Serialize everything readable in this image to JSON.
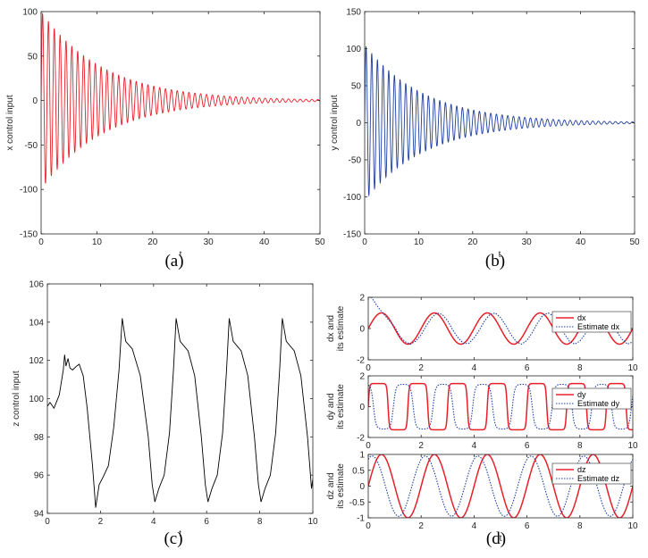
{
  "chart_data": [
    {
      "id": "a",
      "type": "line",
      "caption": "(a)",
      "xlabel": "t",
      "ylabel": "x control input",
      "xlim": [
        0,
        50
      ],
      "ylim": [
        -150,
        100
      ],
      "xticks": [
        0,
        10,
        20,
        30,
        40,
        50
      ],
      "yticks": [
        -150,
        -100,
        -50,
        0,
        50,
        100
      ],
      "grid": false,
      "legend": null,
      "series": [
        {
          "color": "#e8202a",
          "signal": {
            "kind": "damped_sine",
            "amplitude": 100,
            "decay_rate": 0.09,
            "period": 1.05,
            "phase": 0,
            "samples": 3000
          },
          "envelope_peaks": [
            {
              "t": 0.3,
              "y": 100
            },
            {
              "t": 10,
              "y": 40
            },
            {
              "t": 20,
              "y": 16
            },
            {
              "t": 30,
              "y": 6
            },
            {
              "t": 50,
              "y": 2
            }
          ]
        }
      ]
    },
    {
      "id": "b",
      "type": "line",
      "caption": "(b)",
      "xlabel": "t",
      "ylabel": "y control input",
      "xlim": [
        0,
        50
      ],
      "ylim": [
        -150,
        150
      ],
      "xticks": [
        0,
        10,
        20,
        30,
        40,
        50
      ],
      "yticks": [
        -150,
        -100,
        -50,
        0,
        50,
        100,
        150
      ],
      "grid": false,
      "legend": null,
      "series": [
        {
          "color": "#1f3f9e",
          "signal": {
            "kind": "damped_sine",
            "amplitude": 105,
            "decay_rate": 0.09,
            "period": 1.05,
            "phase": 0,
            "samples": 3000
          },
          "envelope_peaks": [
            {
              "t": 0.5,
              "y": 103
            },
            {
              "t": 10,
              "y": 42
            },
            {
              "t": 20,
              "y": 16
            },
            {
              "t": 30,
              "y": 6
            },
            {
              "t": 50,
              "y": 2
            }
          ]
        }
      ]
    },
    {
      "id": "c",
      "type": "line",
      "caption": "(c)",
      "xlabel": "t",
      "ylabel": "z control input",
      "xlim": [
        0,
        10
      ],
      "ylim": [
        94,
        106
      ],
      "xticks": [
        0,
        2,
        4,
        6,
        8,
        10
      ],
      "yticks": [
        94,
        96,
        98,
        100,
        102,
        104,
        106
      ],
      "grid": false,
      "legend": null,
      "series": [
        {
          "color": "#000000",
          "points": [
            [
              0,
              99.6
            ],
            [
              0.1,
              99.8
            ],
            [
              0.25,
              99.5
            ],
            [
              0.45,
              100.2
            ],
            [
              0.6,
              101.5
            ],
            [
              0.65,
              102.3
            ],
            [
              0.7,
              101.7
            ],
            [
              0.78,
              102.1
            ],
            [
              0.85,
              101.6
            ],
            [
              0.95,
              101.5
            ],
            [
              1.1,
              101.7
            ],
            [
              1.2,
              101.8
            ],
            [
              1.35,
              101.2
            ],
            [
              1.5,
              99.5
            ],
            [
              1.7,
              96.5
            ],
            [
              1.82,
              94.3
            ],
            [
              1.95,
              95.5
            ],
            [
              2.1,
              95.9
            ],
            [
              2.3,
              96.5
            ],
            [
              2.5,
              98.5
            ],
            [
              2.7,
              101.5
            ],
            [
              2.82,
              104.2
            ],
            [
              2.95,
              103.0
            ],
            [
              3.2,
              102.6
            ],
            [
              3.5,
              101.2
            ],
            [
              3.8,
              98.0
            ],
            [
              3.95,
              95.5
            ],
            [
              4.05,
              94.6
            ],
            [
              4.2,
              95.3
            ],
            [
              4.4,
              96.0
            ],
            [
              4.6,
              98.2
            ],
            [
              4.75,
              101.5
            ],
            [
              4.85,
              104.2
            ],
            [
              5.0,
              103.0
            ],
            [
              5.3,
              102.5
            ],
            [
              5.55,
              101.2
            ],
            [
              5.8,
              98.0
            ],
            [
              5.95,
              95.5
            ],
            [
              6.05,
              94.6
            ],
            [
              6.2,
              95.3
            ],
            [
              6.4,
              96.0
            ],
            [
              6.6,
              98.2
            ],
            [
              6.75,
              101.5
            ],
            [
              6.85,
              104.2
            ],
            [
              7.0,
              103.0
            ],
            [
              7.3,
              102.5
            ],
            [
              7.55,
              101.2
            ],
            [
              7.8,
              98.0
            ],
            [
              7.95,
              95.5
            ],
            [
              8.05,
              94.6
            ],
            [
              8.2,
              95.3
            ],
            [
              8.4,
              96.0
            ],
            [
              8.6,
              98.2
            ],
            [
              8.75,
              101.5
            ],
            [
              8.85,
              104.2
            ],
            [
              9.0,
              103.0
            ],
            [
              9.3,
              102.5
            ],
            [
              9.55,
              101.2
            ],
            [
              9.8,
              98.0
            ],
            [
              9.95,
              95.3
            ],
            [
              10.0,
              95.8
            ]
          ]
        }
      ]
    },
    {
      "id": "d1",
      "type": "line",
      "caption": "",
      "xlabel": "",
      "ylabel": "dx and\nits estimate",
      "xlim": [
        0,
        10
      ],
      "ylim": [
        -2,
        2
      ],
      "xticks": [
        0,
        2,
        4,
        6,
        8,
        10
      ],
      "yticks": [
        -2,
        0,
        2
      ],
      "grid": false,
      "legend": "top-right",
      "series": [
        {
          "name": "dx",
          "color": "#e8202a",
          "style": "solid",
          "signal": {
            "kind": "sine",
            "amplitude": 1,
            "period": 2,
            "phase": 0,
            "samples": 600
          }
        },
        {
          "name": "Estimate dx",
          "color": "#1f3fa8",
          "style": "dotted",
          "points": [
            [
              0,
              2.3
            ],
            [
              0.2,
              1.8
            ],
            [
              0.4,
              1.3
            ],
            [
              0.6,
              0.9
            ],
            [
              0.8,
              0.5
            ],
            [
              1.0,
              0.1
            ],
            [
              1.2,
              -0.5
            ],
            [
              1.4,
              -0.85
            ],
            [
              1.6,
              -1.0
            ],
            [
              1.8,
              -0.8
            ],
            [
              2.0,
              -0.4
            ],
            [
              2.2,
              0.2
            ],
            [
              2.4,
              0.7
            ],
            [
              2.6,
              1.0
            ],
            [
              2.8,
              0.9
            ],
            [
              3.0,
              0.5
            ],
            [
              3.2,
              -0.1
            ],
            [
              3.4,
              -0.6
            ],
            [
              3.6,
              -0.95
            ],
            [
              3.8,
              -0.95
            ],
            [
              4.0,
              -0.6
            ],
            [
              4.2,
              -0.1
            ],
            [
              4.4,
              0.5
            ],
            [
              4.6,
              0.9
            ],
            [
              4.8,
              1.0
            ],
            [
              5.0,
              0.7
            ],
            [
              5.2,
              0.2
            ],
            [
              5.4,
              -0.4
            ],
            [
              5.6,
              -0.85
            ],
            [
              5.8,
              -1.0
            ],
            [
              6.0,
              -0.75
            ],
            [
              6.2,
              -0.25
            ],
            [
              6.4,
              0.35
            ],
            [
              6.6,
              0.85
            ],
            [
              6.8,
              1.0
            ],
            [
              7.0,
              0.8
            ],
            [
              7.2,
              0.3
            ],
            [
              7.4,
              -0.3
            ],
            [
              7.6,
              -0.8
            ],
            [
              7.8,
              -1.0
            ],
            [
              8.0,
              -0.8
            ],
            [
              8.2,
              -0.35
            ],
            [
              8.4,
              0.25
            ],
            [
              8.6,
              0.75
            ],
            [
              8.8,
              1.0
            ],
            [
              9.0,
              0.85
            ],
            [
              9.2,
              0.4
            ],
            [
              9.4,
              -0.2
            ],
            [
              9.6,
              -0.7
            ],
            [
              9.8,
              -1.0
            ],
            [
              10.0,
              -0.85
            ]
          ]
        }
      ]
    },
    {
      "id": "d2",
      "type": "line",
      "caption": "",
      "xlabel": "",
      "ylabel": "dy and\nits estimate",
      "xlim": [
        0,
        10
      ],
      "ylim": [
        -2,
        2
      ],
      "xticks": [
        0,
        2,
        4,
        6,
        8,
        10
      ],
      "yticks": [
        -2,
        0,
        2
      ],
      "grid": false,
      "legend": "top-right",
      "series": [
        {
          "name": "dy",
          "color": "#e8202a",
          "style": "solid",
          "signal": {
            "kind": "square_sine",
            "amplitude": 1.5,
            "period": 1.5,
            "phase": 0,
            "sharpness": 5,
            "samples": 900
          }
        },
        {
          "name": "Estimate dy",
          "color": "#1f3fa8",
          "style": "dotted",
          "signal": {
            "kind": "square_sine",
            "amplitude": 1.45,
            "period": 1.5,
            "phase": -0.55,
            "sharpness": 2.5,
            "samples": 900
          }
        }
      ]
    },
    {
      "id": "d3",
      "type": "line",
      "caption": "(d)",
      "xlabel": "t",
      "ylabel": "dz and\nits estimate",
      "xlim": [
        0,
        10
      ],
      "ylim": [
        -1,
        1
      ],
      "xticks": [
        0,
        2,
        4,
        6,
        8,
        10
      ],
      "yticks": [
        -1,
        -0.5,
        0,
        0.5,
        1
      ],
      "grid": false,
      "legend": "top-right",
      "series": [
        {
          "name": "dz",
          "color": "#e8202a",
          "style": "solid",
          "signal": {
            "kind": "sine",
            "amplitude": 1,
            "period": 2,
            "phase": 0,
            "samples": 600
          }
        },
        {
          "name": "Estimate dz",
          "color": "#1f3fa8",
          "style": "dotted",
          "signal": {
            "kind": "sine",
            "amplitude": 0.95,
            "period": 2,
            "phase": -0.35,
            "samples": 600
          }
        }
      ]
    }
  ]
}
